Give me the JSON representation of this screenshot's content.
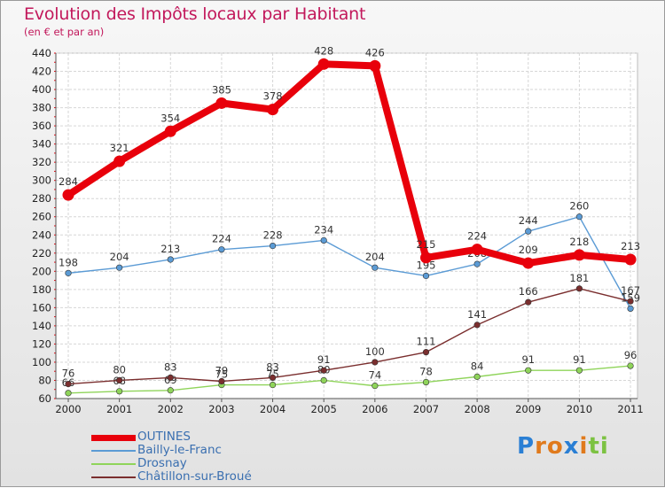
{
  "chart_data": {
    "type": "line",
    "title": "Evolution des Impôts locaux par Habitant",
    "subtitle": "(en € et par an)",
    "xlabel": "",
    "ylabel": "",
    "categories": [
      "2000",
      "2001",
      "2002",
      "2003",
      "2004",
      "2005",
      "2006",
      "2007",
      "2008",
      "2009",
      "2010",
      "2011"
    ],
    "ylim": [
      60,
      440
    ],
    "yticks": [
      60,
      80,
      100,
      120,
      140,
      160,
      180,
      200,
      220,
      240,
      260,
      280,
      300,
      320,
      340,
      360,
      380,
      400,
      420,
      440
    ],
    "grid": true,
    "legend_position": "bottom-left",
    "series": [
      {
        "name": "OUTINES",
        "color": "#e8000b",
        "emphasis": true,
        "values": [
          284,
          321,
          354,
          385,
          378,
          428,
          426,
          215,
          224,
          209,
          218,
          213
        ],
        "labels": [
          "284",
          "321",
          "354",
          "385",
          "378",
          "428",
          "426",
          "215",
          "224",
          "209",
          "218",
          "213"
        ]
      },
      {
        "name": "Bailly-le-Franc",
        "color": "#5b9bd5",
        "emphasis": false,
        "values": [
          198,
          204,
          213,
          224,
          228,
          234,
          204,
          195,
          208,
          244,
          260,
          159
        ],
        "labels": [
          "198",
          "204",
          "213",
          "224",
          "228",
          "234",
          "204",
          "195",
          "208",
          "244",
          "260",
          "159"
        ]
      },
      {
        "name": "Drosnay",
        "color": "#8fd45a",
        "emphasis": false,
        "values": [
          66,
          68,
          69,
          75,
          75,
          80,
          74,
          78,
          84,
          91,
          91,
          96
        ],
        "labels": [
          "66",
          "68",
          "69",
          "75",
          "75",
          "80",
          "74",
          "78",
          "84",
          "91",
          "91",
          "96"
        ]
      },
      {
        "name": "Châtillon-sur-Broué",
        "color": "#7a2e2e",
        "emphasis": false,
        "values": [
          76,
          80,
          83,
          79,
          83,
          91,
          100,
          111,
          141,
          166,
          181,
          167
        ],
        "labels": [
          "76",
          "80",
          "83",
          "79",
          "83",
          "91",
          "100",
          "111",
          "141",
          "166",
          "181",
          "167"
        ]
      }
    ]
  },
  "logo": {
    "letters": [
      "P",
      "r",
      "o",
      "x",
      "i",
      "t",
      "i"
    ],
    "colors": [
      "#2a7fd4",
      "#e07a1c",
      "#e07a1c",
      "#2a7fd4",
      "#e07a1c",
      "#7cc242",
      "#7cc242"
    ]
  }
}
